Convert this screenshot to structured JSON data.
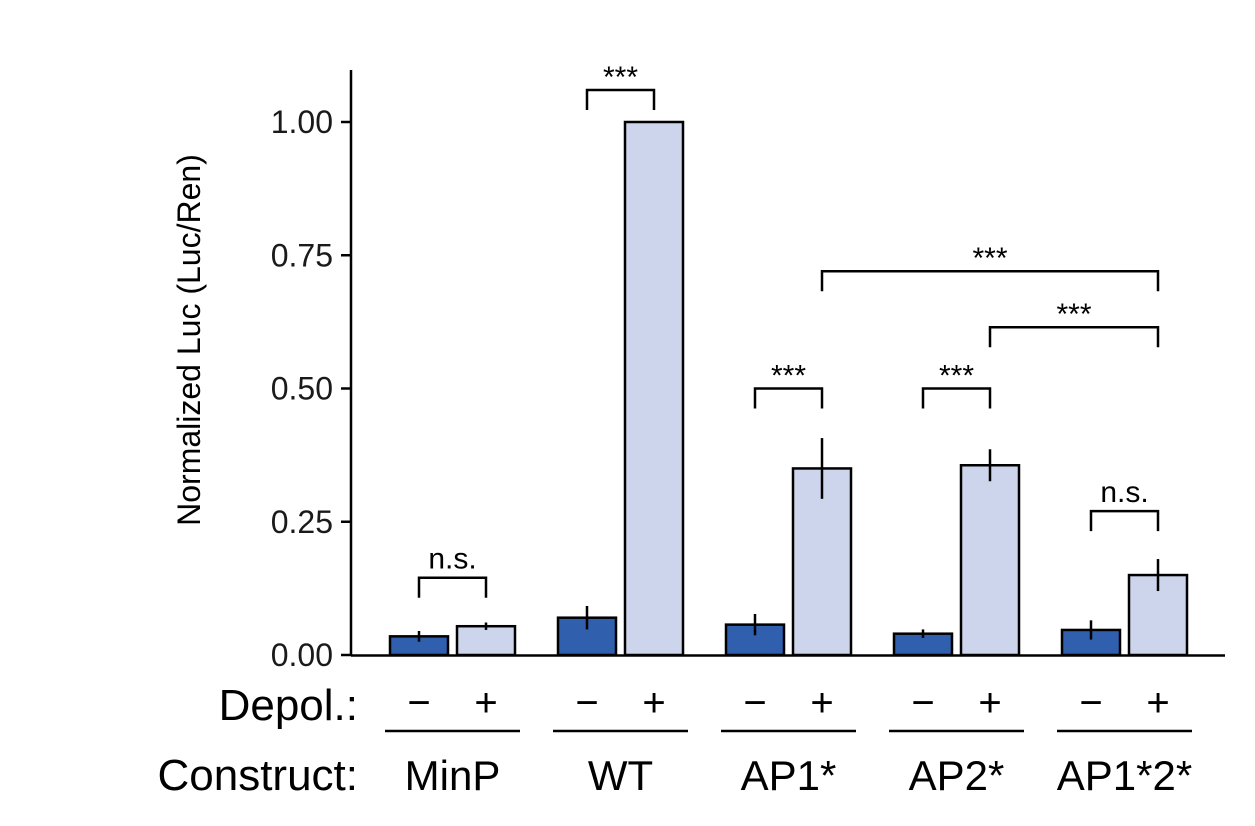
{
  "chart_data": {
    "type": "bar",
    "ylabel": "Normalized Luc (Luc/Ren)",
    "ylim": [
      0,
      1.1
    ],
    "yticks": [
      "0.00",
      "0.25",
      "0.50",
      "0.75",
      "1.00"
    ],
    "ytick_values": [
      0,
      0.25,
      0.5,
      0.75,
      1.0
    ],
    "series": [
      {
        "name": "−",
        "color": "#2f5fad",
        "values": [
          0.035,
          0.07,
          0.057,
          0.04,
          0.047
        ],
        "errors": [
          0.01,
          0.022,
          0.02,
          0.008,
          0.018
        ]
      },
      {
        "name": "+",
        "color": "#cdd5ec",
        "values": [
          0.054,
          1.0,
          0.35,
          0.356,
          0.15
        ],
        "errors": [
          0.007,
          0.0,
          0.057,
          0.03,
          0.03
        ]
      }
    ],
    "categories": [
      "MinP",
      "WT",
      "AP1*",
      "AP2*",
      "AP1*2*"
    ],
    "row_labels": {
      "depol": "Depol.:",
      "construct": "Construct:"
    },
    "signs": {
      "minus": "−",
      "plus": "+"
    },
    "comparisons": [
      {
        "group": 0,
        "from": 0,
        "to": 1,
        "label": "n.s.",
        "y": 0.145
      },
      {
        "group": 1,
        "from": 0,
        "to": 1,
        "label": "***",
        "y": 1.06
      },
      {
        "group": 2,
        "from": 0,
        "to": 1,
        "label": "***",
        "y": 0.5
      },
      {
        "group": 3,
        "from": 0,
        "to": 1,
        "label": "***",
        "y": 0.5
      },
      {
        "group": 4,
        "from": 0,
        "to": 1,
        "label": "n.s.",
        "y": 0.27
      },
      {
        "group_from": 2,
        "group_to": 4,
        "series": 1,
        "label": "***",
        "y": 0.72
      },
      {
        "group_from": 3,
        "group_to": 4,
        "series": 1,
        "label": "***",
        "y": 0.615
      }
    ]
  }
}
